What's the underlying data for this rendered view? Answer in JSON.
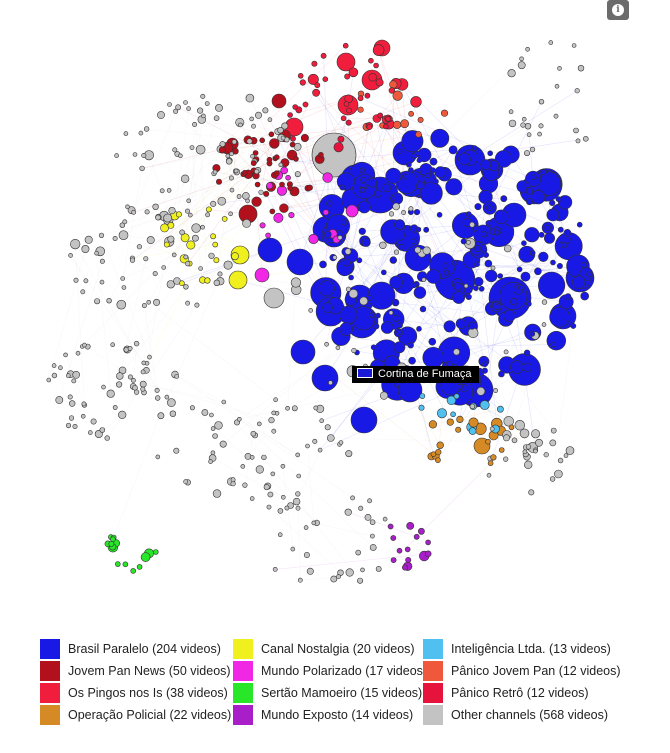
{
  "info_icon": "info-icon",
  "highlight_label": "Cortina de Fumaça",
  "colors": {
    "brasil": "#1919e6",
    "jovem": "#b3101d",
    "pingos": "#f01e3c",
    "policial": "#d68a26",
    "nostalgia": "#f0f01e",
    "polarizado": "#f028e6",
    "sertao": "#28e628",
    "exposto": "#a81ec8",
    "inteligencia": "#50c0f0",
    "panico": "#f0583c",
    "retro": "#e6143c",
    "other": "#c3c3c3"
  },
  "legend": [
    {
      "key": "brasil",
      "label": "Brasil Paralelo (204 videos)"
    },
    {
      "key": "jovem",
      "label": "Jovem Pan News (50 videos)"
    },
    {
      "key": "pingos",
      "label": "Os Pingos nos Is (38 videos)"
    },
    {
      "key": "policial",
      "label": "Operação Policial (22 videos)"
    },
    {
      "key": "nostalgia",
      "label": "Canal Nostalgia (20 videos)"
    },
    {
      "key": "polarizado",
      "label": "Mundo Polarizado (17 videos)"
    },
    {
      "key": "sertao",
      "label": "Sertão Mamoeiro (15 videos)"
    },
    {
      "key": "exposto",
      "label": "Mundo Exposto (14 videos)"
    },
    {
      "key": "inteligencia",
      "label": "Inteligência Ltda. (13 videos)"
    },
    {
      "key": "panico",
      "label": "Pânico Jovem Pan (12 videos)"
    },
    {
      "key": "retro",
      "label": "Pânico Retrô (12 videos)"
    },
    {
      "key": "other",
      "label": "Other channels (568 videos)"
    }
  ]
}
